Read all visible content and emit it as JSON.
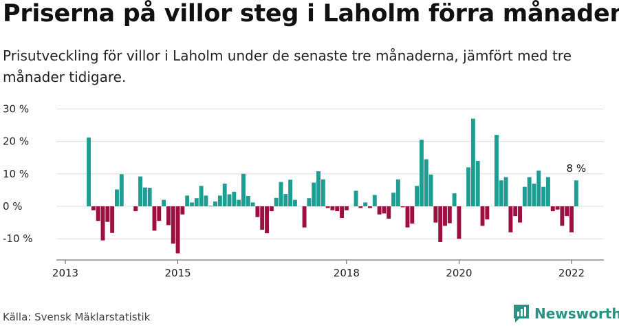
{
  "header": {
    "title": "Priserna på villor steg i Laholm förra månaden",
    "subtitle": "Prisutveckling för villor i Laholm under de senaste tre månaderna, jämfört med tre månader tidigare."
  },
  "footer": {
    "source": "Källa: Svensk Mäklarstatistik",
    "brand": "Newsworthy",
    "brand_icon": "newsworthy-logo-icon"
  },
  "colors": {
    "positive": "#1e9e92",
    "negative": "#9c0f40",
    "grid": "#dddddd",
    "axis": "#555555"
  },
  "chart_data": {
    "type": "bar",
    "title": "",
    "xlabel": "",
    "ylabel": "",
    "ylim": [
      -16,
      31
    ],
    "y_ticks": [
      -10,
      0,
      10,
      20,
      30
    ],
    "y_tick_labels": [
      "-10 %",
      "0 %",
      "10 %",
      "20 %",
      "30 %"
    ],
    "x_ticks": [
      2013,
      2015,
      2018,
      2020,
      2022
    ],
    "x_tick_labels": [
      "2013",
      "2015",
      "2018",
      "2020",
      "2022"
    ],
    "grid": true,
    "categories": [
      "2013-06",
      "2013-07",
      "2013-08",
      "2013-09",
      "2013-10",
      "2013-11",
      "2013-12",
      "2014-01",
      "2014-02",
      "2014-03",
      "2014-04",
      "2014-05",
      "2014-06",
      "2014-07",
      "2014-08",
      "2014-09",
      "2014-10",
      "2014-11",
      "2014-12",
      "2015-01",
      "2015-02",
      "2015-03",
      "2015-04",
      "2015-05",
      "2015-06",
      "2015-07",
      "2015-08",
      "2015-09",
      "2015-10",
      "2015-11",
      "2015-12",
      "2016-01",
      "2016-02",
      "2016-03",
      "2016-04",
      "2016-05",
      "2016-06",
      "2016-07",
      "2016-08",
      "2016-09",
      "2016-10",
      "2016-11",
      "2016-12",
      "2017-01",
      "2017-02",
      "2017-03",
      "2017-04",
      "2017-05",
      "2017-06",
      "2017-07",
      "2017-08",
      "2017-09",
      "2017-10",
      "2017-11",
      "2017-12",
      "2018-01",
      "2018-02",
      "2018-03",
      "2018-04",
      "2018-05",
      "2018-06",
      "2018-07",
      "2018-08",
      "2018-09",
      "2018-10",
      "2018-11",
      "2018-12",
      "2019-01",
      "2019-02",
      "2019-03",
      "2019-04",
      "2019-05",
      "2019-06",
      "2019-07",
      "2019-08",
      "2019-09",
      "2019-10",
      "2019-11",
      "2019-12",
      "2020-01",
      "2020-02",
      "2020-03",
      "2020-04",
      "2020-05",
      "2020-06",
      "2020-07",
      "2020-08",
      "2020-09",
      "2020-10",
      "2020-11",
      "2020-12",
      "2021-01",
      "2021-02",
      "2021-03",
      "2021-04",
      "2021-05",
      "2021-06",
      "2021-07",
      "2021-08",
      "2021-09",
      "2021-10",
      "2021-11",
      "2021-12",
      "2022-01",
      "2022-02"
    ],
    "values": [
      21.2,
      -1.2,
      -4.5,
      -10.5,
      -4.8,
      -8.2,
      5.2,
      9.9,
      0,
      0,
      -1.5,
      9.2,
      5.8,
      5.7,
      -7.5,
      -4.5,
      2.0,
      -5.8,
      -11.5,
      -14.5,
      -2.5,
      3.3,
      1.2,
      2.5,
      6.3,
      3.3,
      0.2,
      1.5,
      3.3,
      7.0,
      3.7,
      4.5,
      2.0,
      10.0,
      3.2,
      1.2,
      -3.3,
      -7.2,
      -8.3,
      -1.5,
      2.6,
      7.5,
      3.8,
      8.2,
      2.0,
      0,
      -6.5,
      2.5,
      7.3,
      10.8,
      8.3,
      -0.5,
      -1.2,
      -1.5,
      -3.6,
      -1.2,
      0,
      4.8,
      -0.5,
      1.2,
      -0.5,
      3.5,
      -2.5,
      -2.2,
      -3.8,
      4.2,
      8.3,
      -0.3,
      -6.5,
      -5.3,
      6.3,
      20.5,
      14.5,
      9.8,
      -5.0,
      -11.0,
      -6.0,
      -5.2,
      4.0,
      -10.0,
      0,
      12.0,
      27.0,
      14.0,
      -6.0,
      -4.0,
      0,
      22.0,
      8.0,
      9.0,
      -8.0,
      -3.0,
      -5.0,
      6.0,
      9.0,
      7.0,
      11.0,
      6.0,
      9.0,
      -1.5,
      -1.0,
      -6.0,
      -3.0,
      -8.0,
      8.0
    ],
    "annotation": {
      "label": "8 %",
      "value": 8.0,
      "category": "2022-02"
    }
  }
}
